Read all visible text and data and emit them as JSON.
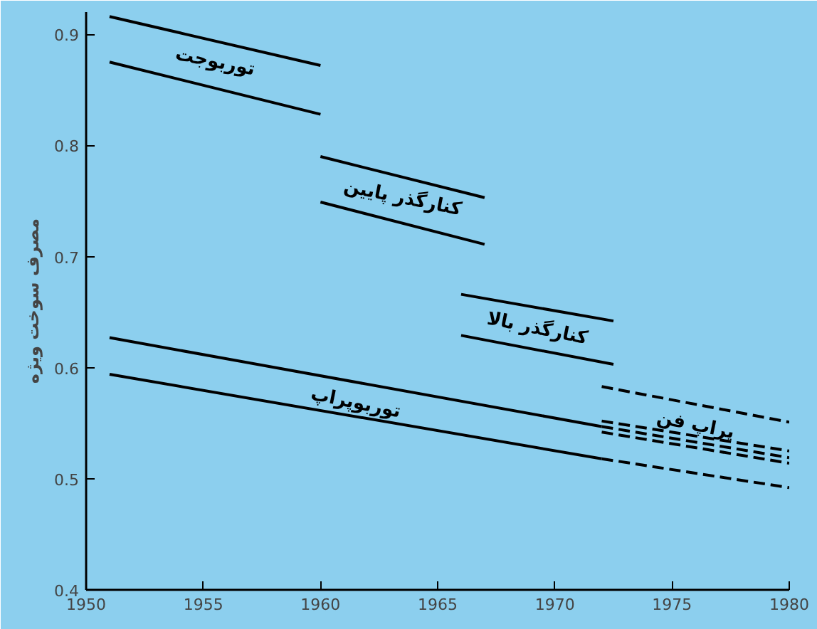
{
  "chart_data": {
    "type": "line",
    "ylabel": "مصرف سوخت ویژه",
    "xlim": [
      1950,
      1980
    ],
    "xticks": [
      1950,
      1955,
      1960,
      1965,
      1970,
      1975,
      1980
    ],
    "ylim": [
      0.4,
      0.92
    ],
    "yticks": [
      0.4,
      0.5,
      0.6,
      0.7,
      0.8,
      0.9
    ],
    "grid": false,
    "legend": false,
    "marker": "none",
    "series": [
      {
        "name": "توربوجت",
        "color": "#000000",
        "x": [
          1951,
          1960
        ],
        "values": [
          0.916,
          0.872
        ]
      },
      {
        "color": "#000000",
        "x": [
          1951,
          1960
        ],
        "values": [
          0.875,
          0.828
        ]
      },
      {
        "name": "کنارگذر پایین",
        "color": "#000000",
        "x": [
          1960,
          1967
        ],
        "values": [
          0.79,
          0.753
        ]
      },
      {
        "color": "#000000",
        "x": [
          1960,
          1967
        ],
        "values": [
          0.749,
          0.711
        ]
      },
      {
        "name": "کنارگذر بالا",
        "color": "#000000",
        "x": [
          1966,
          1972.5
        ],
        "values": [
          0.666,
          0.642
        ]
      },
      {
        "color": "#000000",
        "x": [
          1966,
          1972.5
        ],
        "values": [
          0.629,
          0.603
        ]
      },
      {
        "name": "توربوپراپ",
        "color": "#000000",
        "x": [
          1951,
          1972
        ],
        "values": [
          0.627,
          0.547
        ]
      },
      {
        "color": "#000000",
        "x": [
          1951,
          1972
        ],
        "values": [
          0.594,
          0.518
        ]
      },
      {
        "name": "پراپ فن",
        "color": "#000000",
        "line_style": "dashed",
        "x": [
          1972,
          1980
        ],
        "values": [
          0.583,
          0.551
        ]
      },
      {
        "color": "#000000",
        "line_style": "dashed",
        "x": [
          1972,
          1980
        ],
        "values": [
          0.552,
          0.525
        ]
      },
      {
        "color": "#000000",
        "line_style": "dashed",
        "x": [
          1972,
          1980
        ],
        "values": [
          0.547,
          0.519
        ]
      },
      {
        "color": "#000000",
        "line_style": "dashed",
        "x": [
          1972,
          1980
        ],
        "values": [
          0.542,
          0.514
        ]
      },
      {
        "color": "#000000",
        "line_style": "dashed",
        "x": [
          1972,
          1980
        ],
        "values": [
          0.518,
          0.492
        ]
      }
    ]
  }
}
